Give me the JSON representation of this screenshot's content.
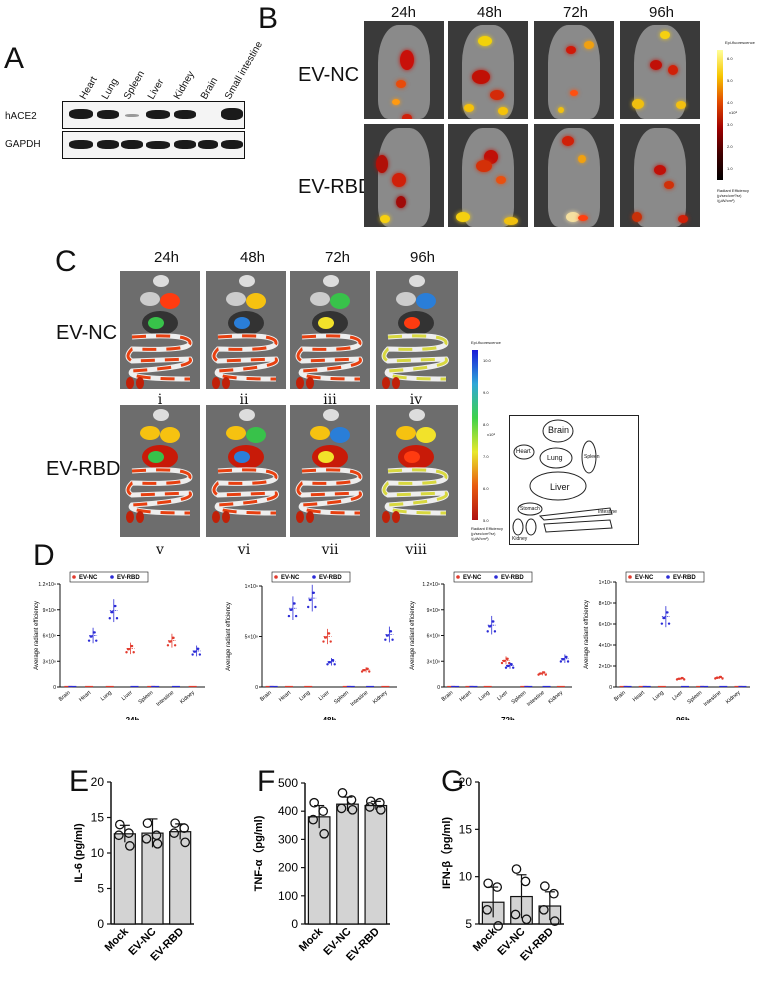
{
  "panels": {
    "a": "A",
    "b": "B",
    "c": "C",
    "d": "D",
    "e": "E",
    "f": "F",
    "g": "G"
  },
  "western": {
    "tissues": [
      "Heart",
      "Lung",
      "Spleen",
      "Liver",
      "Kidney",
      "Brain",
      "Small intestine"
    ],
    "rows": [
      "hACE2",
      "GAPDH"
    ]
  },
  "imaging_b": {
    "times": [
      "24h",
      "48h",
      "72h",
      "96h"
    ],
    "groups": [
      "EV-NC",
      "EV-RBD"
    ],
    "scale_title": "Epi-fluorescence",
    "scale_unit": "x10⁸",
    "scale_ticks": [
      "6.0",
      "5.0",
      "4.0",
      "3.0",
      "2.0",
      "1.0"
    ],
    "scale_footer": "Radiant Efficiency\n(p/sec/cm²/sr)\n/(μW/cm²)"
  },
  "imaging_c": {
    "times": [
      "24h",
      "48h",
      "72h",
      "96h"
    ],
    "groups": [
      "EV-NC",
      "EV-RBD"
    ],
    "roman_top": [
      "i",
      "ii",
      "iii",
      "iv"
    ],
    "roman_bottom": [
      "v",
      "vi",
      "vii",
      "viii"
    ],
    "scale_title": "Epi-fluorescence",
    "scale_unit": "x10⁸",
    "scale_ticks": [
      "10.0",
      "9.0",
      "8.0",
      "7.0",
      "6.0",
      "5.0"
    ],
    "scale_footer": "Radiant Efficiency\n(p/sec/cm²/sr)\n/(μW/cm²)",
    "layout_labels": [
      "Brain",
      "Heart",
      "Lung",
      "Spleen",
      "Liver",
      "Stomach",
      "Intestine",
      "Kidney"
    ]
  },
  "chart_data": [
    {
      "type": "scatter",
      "title": "24h",
      "ylabel": "Average radiant efficiency",
      "categories": [
        "Brain",
        "Heart",
        "Lung",
        "Liver",
        "Spleen",
        "Intestine",
        "Kidney"
      ],
      "yticks": [
        "0",
        "3×10⁸",
        "6×10⁸",
        "9×10⁸",
        "1.2×10⁹"
      ],
      "ylim": [
        0,
        1200000000
      ],
      "series": [
        {
          "name": "EV-NC",
          "color": "#e23b2e",
          "values": [
            0,
            0,
            0,
            450000000,
            0,
            540000000,
            0
          ]
        },
        {
          "name": "EV-RBD",
          "color": "#2b2bd6",
          "values": [
            0,
            600000000,
            890000000,
            0,
            0,
            0,
            420000000
          ]
        }
      ]
    },
    {
      "type": "scatter",
      "title": "48h",
      "ylabel": "Average radiant efficiency",
      "categories": [
        "Brain",
        "Heart",
        "Lung",
        "Liver",
        "Spleen",
        "Intestine",
        "Kidney"
      ],
      "yticks": [
        "0",
        "5×10⁸",
        "1×10⁹"
      ],
      "ylim": [
        0,
        1000000000
      ],
      "series": [
        {
          "name": "EV-NC",
          "color": "#e23b2e",
          "values": [
            0,
            0,
            0,
            500000000,
            0,
            170000000,
            0
          ]
        },
        {
          "name": "EV-RBD",
          "color": "#2b2bd6",
          "values": [
            0,
            780000000,
            880000000,
            250000000,
            0,
            0,
            520000000
          ]
        }
      ]
    },
    {
      "type": "scatter",
      "title": "72h",
      "ylabel": "Average radiant efficiency",
      "categories": [
        "Brain",
        "Heart",
        "Lung",
        "Liver",
        "Spleen",
        "Intestine",
        "Kidney"
      ],
      "yticks": [
        "0",
        "3×10⁸",
        "6×10⁸",
        "9×10⁸",
        "1.2×10⁹"
      ],
      "ylim": [
        0,
        1200000000
      ],
      "series": [
        {
          "name": "EV-NC",
          "color": "#e23b2e",
          "values": [
            0,
            0,
            0,
            310000000,
            0,
            160000000,
            0
          ]
        },
        {
          "name": "EV-RBD",
          "color": "#2b2bd6",
          "values": [
            0,
            0,
            720000000,
            250000000,
            0,
            0,
            330000000
          ]
        }
      ]
    },
    {
      "type": "scatter",
      "title": "96h",
      "ylabel": "Average radiant efficiency",
      "categories": [
        "Brain",
        "Heart",
        "Lung",
        "Liver",
        "Spleen",
        "Intestine",
        "Kidney"
      ],
      "yticks": [
        "0",
        "2×10⁸",
        "4×10⁸",
        "6×10⁸",
        "8×10⁸",
        "1×10⁹"
      ],
      "ylim": [
        0,
        1000000000
      ],
      "series": [
        {
          "name": "EV-NC",
          "color": "#e23b2e",
          "values": [
            0,
            0,
            0,
            80000000,
            0,
            90000000,
            0
          ]
        },
        {
          "name": "EV-RBD",
          "color": "#2b2bd6",
          "values": [
            0,
            0,
            670000000,
            0,
            0,
            0,
            0
          ]
        }
      ]
    },
    {
      "type": "bar",
      "ylabel": "IL-6 (pg/ml)",
      "categories": [
        "Mock",
        "EV-NC",
        "EV-RBD"
      ],
      "values": [
        12.7,
        12.8,
        13.0
      ],
      "errors": [
        1.2,
        2.0,
        1.1
      ],
      "points": [
        [
          14,
          12.8,
          12.5,
          11
        ],
        [
          14.2,
          12.5,
          12,
          11.3
        ],
        [
          14.2,
          13.5,
          12.8,
          11.5
        ]
      ],
      "yticks": [
        "0",
        "5",
        "10",
        "15",
        "20"
      ],
      "ylim": [
        0,
        20
      ]
    },
    {
      "type": "bar",
      "ylabel": "TNF-α（pg/ml)",
      "categories": [
        "Mock",
        "EV-NC",
        "EV-RBD"
      ],
      "values": [
        380,
        425,
        420
      ],
      "errors": [
        40,
        25,
        15
      ],
      "points": [
        [
          430,
          400,
          370,
          320
        ],
        [
          465,
          440,
          410,
          405
        ],
        [
          435,
          430,
          415,
          405
        ]
      ],
      "yticks": [
        "0",
        "100",
        "200",
        "300",
        "400",
        "500"
      ],
      "ylim": [
        0,
        500
      ]
    },
    {
      "type": "bar",
      "ylabel": "IFN-β（pg/ml)",
      "categories": [
        "Mock",
        "EV-NC",
        "EV-RBD"
      ],
      "values": [
        7.3,
        7.9,
        6.9
      ],
      "errors": [
        1.6,
        2.3,
        1.5
      ],
      "points": [
        [
          9.3,
          8.9,
          6.5,
          4.8
        ],
        [
          10.8,
          9.5,
          6.0,
          5.5
        ],
        [
          9.0,
          8.2,
          6.5,
          5.3
        ]
      ],
      "yticks": [
        "5",
        "10",
        "15",
        "20"
      ],
      "ylim": [
        5,
        20
      ]
    }
  ]
}
